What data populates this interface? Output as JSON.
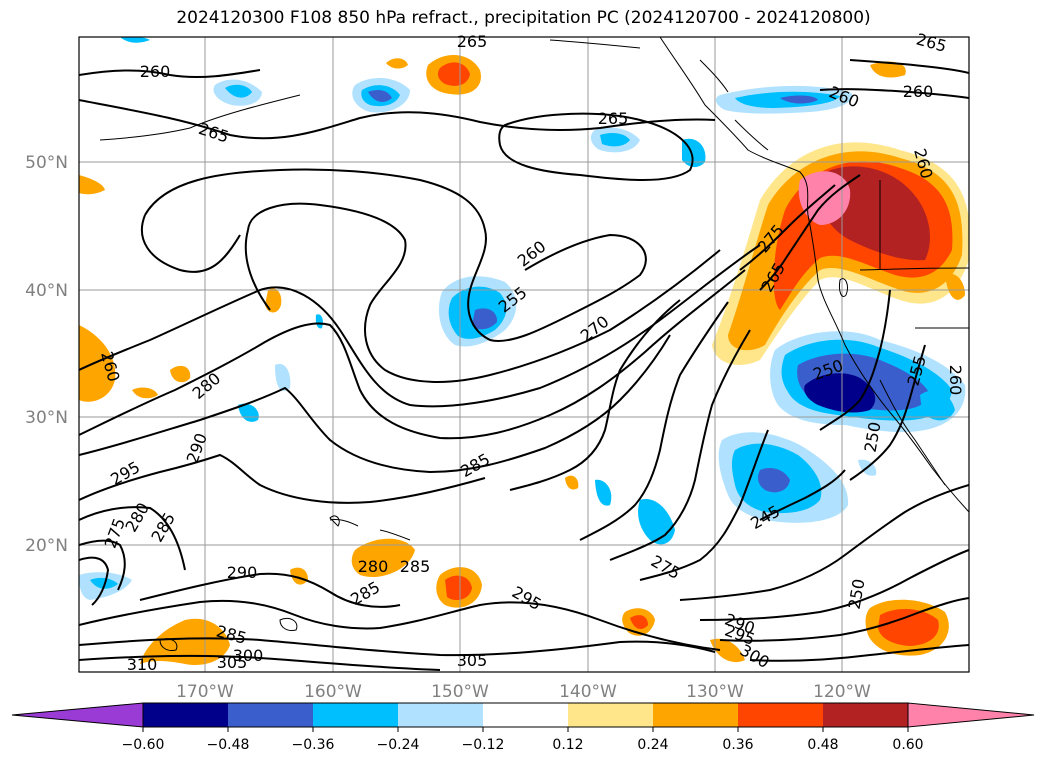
{
  "title": "2024120300 F108 850 hPa refract., precipitation PC (2024120700 - 2024120800)",
  "map": {
    "lat_labels": [
      "50°N",
      "40°N",
      "30°N",
      "20°N"
    ],
    "lon_labels": [
      "170°W",
      "160°W",
      "150°W",
      "140°W",
      "130°W",
      "120°W"
    ],
    "gridlines": true
  },
  "contour_labels": [
    "260",
    "265",
    "265",
    "260",
    "265",
    "260",
    "255",
    "260",
    "270",
    "265",
    "260",
    "280",
    "290",
    "295",
    "285",
    "280",
    "275",
    "290",
    "285",
    "280",
    "285",
    "285",
    "295",
    "305",
    "310",
    "305",
    "300",
    "285",
    "275",
    "290",
    "295",
    "300",
    "250",
    "245",
    "250",
    "255",
    "260",
    "250",
    "275",
    "265",
    "260"
  ],
  "colorbar": {
    "ticks": [
      "−0.60",
      "−0.48",
      "−0.36",
      "−0.24",
      "−0.12",
      "0.12",
      "0.24",
      "0.36",
      "0.48",
      "0.60"
    ],
    "colors": [
      "#9b3bd6",
      "#00008b",
      "#3a5fcd",
      "#00bfff",
      "#b0e2ff",
      "#ffffff",
      "#ffe68a",
      "#ffa500",
      "#ff4500",
      "#b22222",
      "#ff82ab"
    ]
  }
}
